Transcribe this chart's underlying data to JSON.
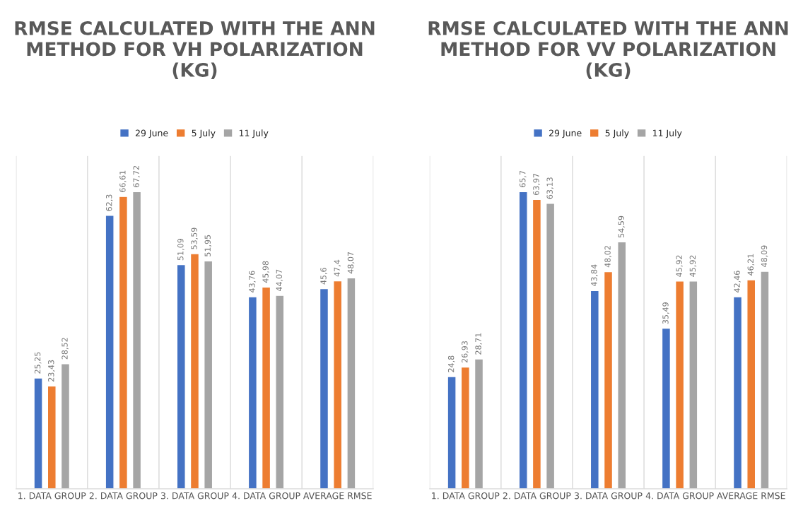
{
  "chart_data": [
    {
      "type": "bar",
      "title": "RMSE CALCULATED WITH THE ANN METHOD FOR VH POLARIZATION (KG)",
      "categories": [
        "1. DATA GROUP",
        "2. DATA GROUP",
        "3. DATA GROUP",
        "4. DATA GROUP",
        "AVERAGE RMSE"
      ],
      "legend": "top",
      "grid": "x",
      "series": [
        {
          "name": "29 June",
          "color": "#4472c4",
          "values": [
            25.25,
            62.3,
            51.09,
            43.76,
            45.6
          ],
          "value_labels": [
            "25,25",
            "62,3",
            "51,09",
            "43,76",
            "45,6"
          ]
        },
        {
          "name": "5 July",
          "color": "#ed7d31",
          "values": [
            23.43,
            66.61,
            53.59,
            45.98,
            47.4
          ],
          "value_labels": [
            "23,43",
            "66,61",
            "53,59",
            "45,98",
            "47,4"
          ]
        },
        {
          "name": "11 July",
          "color": "#a5a5a5",
          "values": [
            28.52,
            67.72,
            51.95,
            44.07,
            48.07
          ],
          "value_labels": [
            "28,52",
            "67,72",
            "51,95",
            "44,07",
            "48,07"
          ]
        }
      ]
    },
    {
      "type": "bar",
      "title": "RMSE CALCULATED WITH THE ANN METHOD FOR VV POLARIZATION (KG)",
      "categories": [
        "1. DATA GROUP",
        "2. DATA GROUP",
        "3. DATA GROUP",
        "4. DATA GROUP",
        "AVERAGE RMSE"
      ],
      "legend": "top",
      "grid": "x",
      "series": [
        {
          "name": "29 June",
          "color": "#4472c4",
          "values": [
            24.8,
            65.7,
            43.84,
            35.49,
            42.46
          ],
          "value_labels": [
            "24,8",
            "65,7",
            "43,84",
            "35,49",
            "42,46"
          ]
        },
        {
          "name": "5 July",
          "color": "#ed7d31",
          "values": [
            26.93,
            63.97,
            48.02,
            45.92,
            46.21
          ],
          "value_labels": [
            "26,93",
            "63,97",
            "48,02",
            "45,92",
            "46,21"
          ]
        },
        {
          "name": "11 July",
          "color": "#a5a5a5",
          "values": [
            28.71,
            63.13,
            54.59,
            45.92,
            48.09
          ],
          "value_labels": [
            "28,71",
            "63,13",
            "54,59",
            "45,92",
            "48,09"
          ]
        }
      ]
    }
  ]
}
